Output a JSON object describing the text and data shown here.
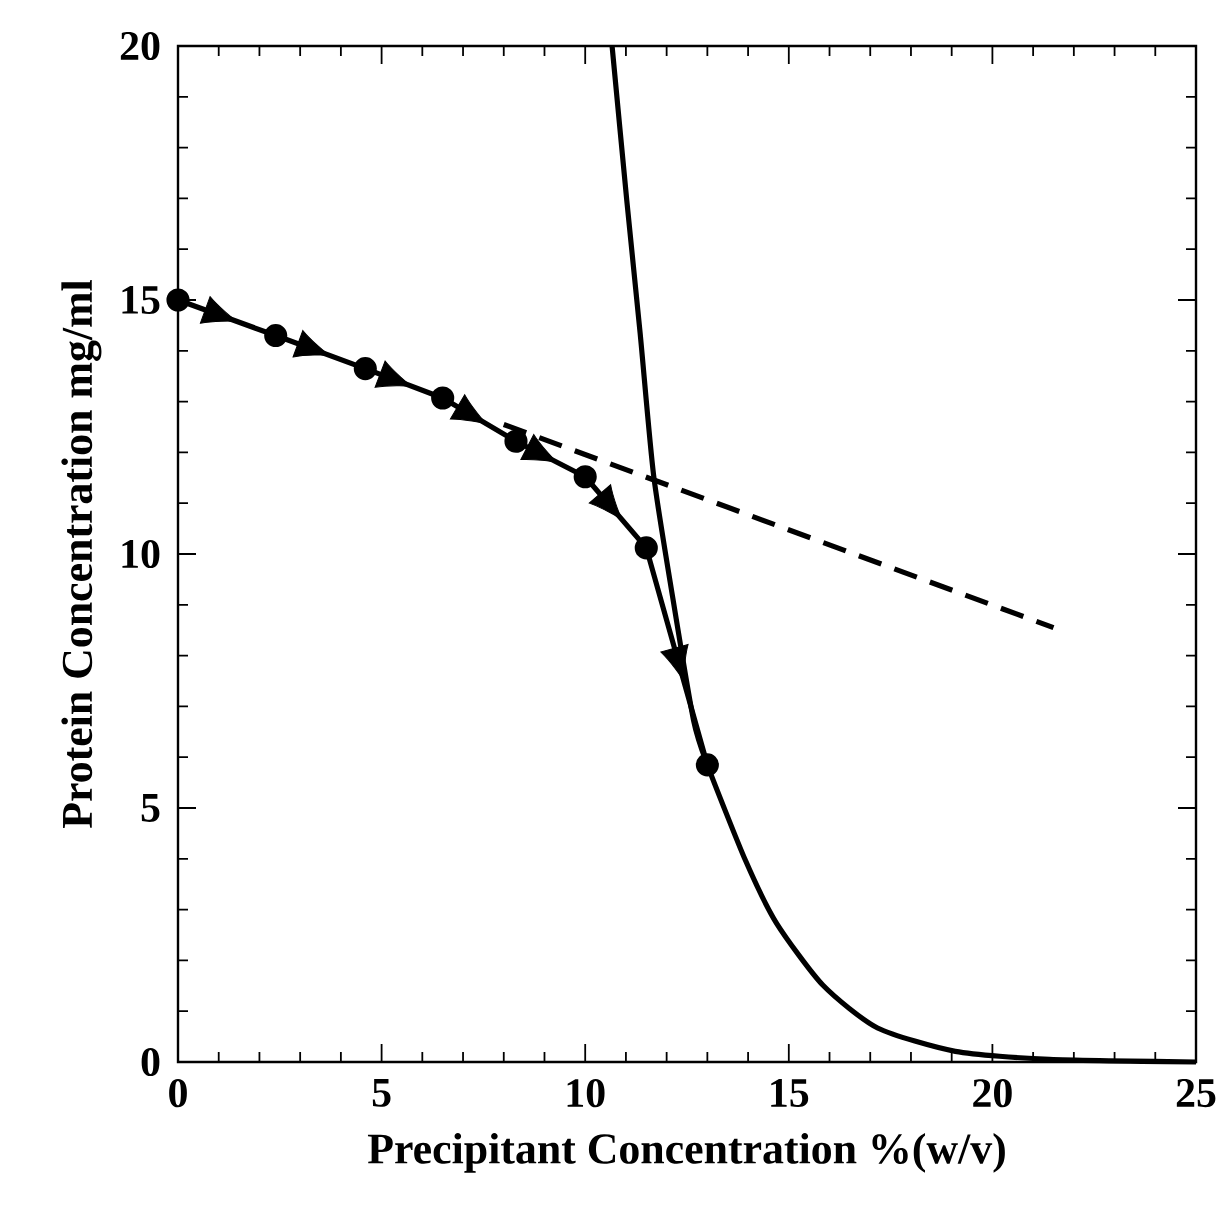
{
  "chart_data": {
    "type": "line",
    "xlabel": "Precipitant Concentration %(w/v)",
    "ylabel": "Protein Concentration mg/ml",
    "xlim": [
      0,
      25
    ],
    "ylim": [
      0,
      20
    ],
    "xticks": [
      0,
      5,
      10,
      15,
      20,
      25
    ],
    "yticks": [
      0,
      5,
      10,
      15,
      20
    ],
    "grid": false,
    "series": [
      {
        "color": "#000000",
        "marker": "circle",
        "line_style": "solid",
        "x": [
          0,
          2.4,
          4.6,
          6.5,
          8.3,
          10.0,
          11.5,
          13.0
        ],
        "values": [
          15.0,
          14.3,
          13.65,
          13.07,
          12.22,
          11.52,
          10.12,
          5.85
        ]
      },
      {
        "color": "#000000",
        "marker": "none",
        "line_style": "dashed",
        "x": [
          8.0,
          21.5
        ],
        "values": [
          12.55,
          8.55
        ]
      },
      {
        "color": "#000000",
        "marker": "none",
        "line_style": "solid",
        "x": [
          10.66,
          11.02,
          11.35,
          11.68,
          12.15,
          12.66,
          13.0,
          13.94,
          14.7,
          15.84,
          17.18,
          19.09,
          21.4,
          25
        ],
        "values": [
          20,
          16.97,
          14.34,
          11.55,
          9.14,
          6.73,
          5.85,
          3.96,
          2.73,
          1.51,
          0.67,
          0.21,
          0.05,
          0
        ]
      }
    ]
  }
}
